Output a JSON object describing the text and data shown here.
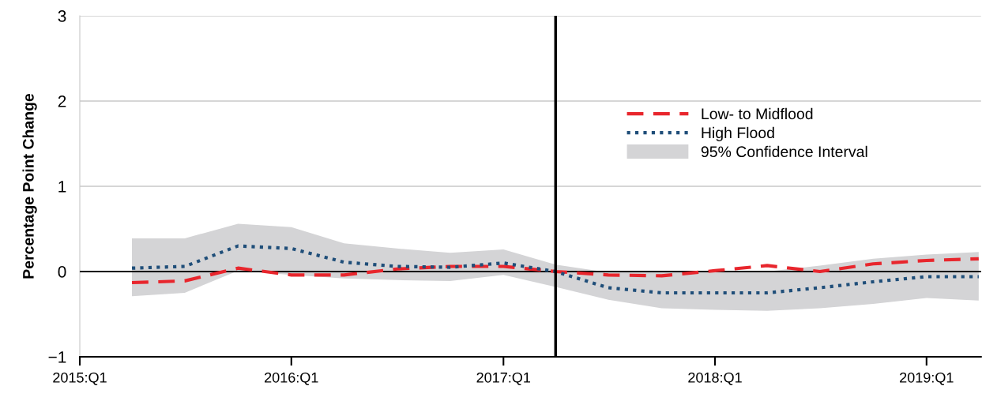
{
  "chart_data": {
    "type": "line",
    "ylabel": "Percentage Point Change",
    "x": [
      "2015-04",
      "2015-07",
      "2015-10",
      "2016-01",
      "2016-04",
      "2016-07",
      "2016-10",
      "2017-01",
      "2017-04",
      "2017-07",
      "2017-10",
      "2018-01",
      "2018-04",
      "2018-07",
      "2018-10",
      "2019-01",
      "2019-04"
    ],
    "series": [
      {
        "name": "Low- to Midflood",
        "color": "#e8262d",
        "line_style": "dashed",
        "values": [
          -0.13,
          -0.11,
          0.04,
          -0.04,
          -0.04,
          0.03,
          0.06,
          0.06,
          0,
          -0.04,
          -0.05,
          0.01,
          0.07,
          0.0,
          0.09,
          0.13,
          0.15
        ]
      },
      {
        "name": "High Flood",
        "color": "#1f4e79",
        "line_style": "dotted",
        "values": [
          0.04,
          0.06,
          0.3,
          0.27,
          0.11,
          0.06,
          0.05,
          0.1,
          0,
          -0.19,
          -0.25,
          -0.25,
          -0.25,
          -0.19,
          -0.12,
          -0.06,
          -0.06
        ],
        "lower": [
          -0.29,
          -0.25,
          0.01,
          -0.04,
          -0.08,
          -0.1,
          -0.11,
          -0.04,
          -0.18,
          -0.33,
          -0.43,
          -0.45,
          -0.46,
          -0.43,
          -0.38,
          -0.31,
          -0.34
        ],
        "upper": [
          0.39,
          0.39,
          0.56,
          0.52,
          0.33,
          0.27,
          0.22,
          0.26,
          0.08,
          -0.01,
          0,
          0,
          0,
          0.07,
          0.15,
          0.2,
          0.23
        ]
      }
    ],
    "annotations": [
      "95% Confidence Interval"
    ],
    "xlim": [
      "2015-01-01",
      "2019-04-05"
    ],
    "xticks": [
      {
        "value": "2015-01",
        "label": "2015:Q1"
      },
      {
        "value": "2016-01",
        "label": "2016:Q1"
      },
      {
        "value": "2017-01",
        "label": "2017:Q1"
      },
      {
        "value": "2018-01",
        "label": "2018:Q1"
      },
      {
        "value": "2019-01",
        "label": "2019:Q1"
      }
    ],
    "ylim": [
      -1,
      3
    ],
    "yticks": [
      {
        "value": -1,
        "label": "−1"
      },
      0,
      1,
      2,
      3
    ],
    "ref_lines": [
      {
        "axis": "x",
        "value": "2017-04",
        "color": "#000000"
      },
      {
        "axis": "y",
        "value": 0,
        "color": "#000000"
      }
    ],
    "grid": "y",
    "legend": "top right"
  }
}
